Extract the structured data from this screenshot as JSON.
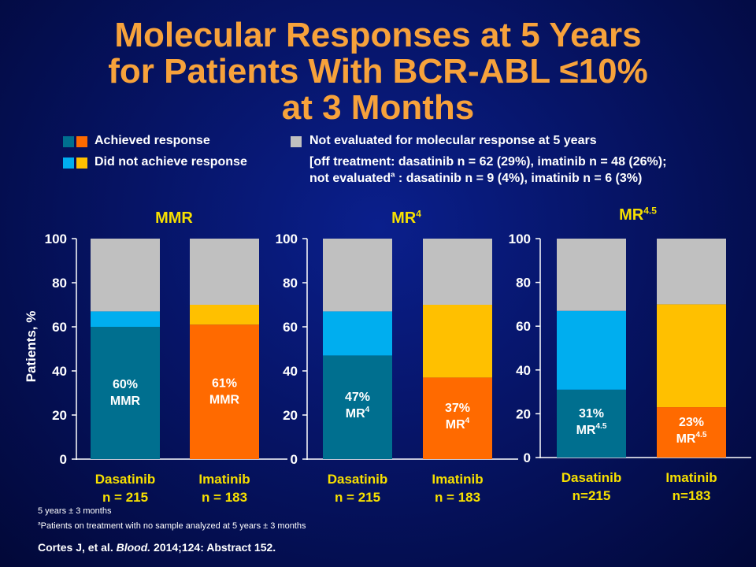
{
  "title": {
    "line1": "Molecular Responses at 5 Years",
    "line2": "for Patients With BCR-ABL ≤10%",
    "line3": "at 3 Months"
  },
  "legend": {
    "achieved": "Achieved response",
    "not_achieved": "Did not achieve response",
    "not_evaluated": "Not evaluated for molecular response at 5 years",
    "not_evaluated_detail1": "[off treatment: dasatinib n = 62 (29%), imatinib n = 48 (26%);",
    "not_evaluated_detail2a": "not evaluated",
    "not_evaluated_detail2sup": "a",
    "not_evaluated_detail2b": " : dasatinib n = 9 (4%), imatinib n = 6 (3%)",
    "colors": {
      "dasatinib_achieved": "#006f8f",
      "imatinib_achieved": "#ff6a00",
      "dasatinib_not": "#00aeef",
      "imatinib_not": "#ffc000",
      "not_evaluated": "#c0c0c0"
    }
  },
  "y_axis_label": "Patients, %",
  "chart_data": [
    {
      "type": "bar",
      "stacked": true,
      "panel_title": "MMR",
      "panel_title_sup": "",
      "ylim": [
        0,
        100
      ],
      "yticks": [
        0,
        20,
        40,
        60,
        80,
        100
      ],
      "categories": [
        {
          "name": "Dasatinib",
          "n": "n = 215"
        },
        {
          "name": "Imatinib",
          "n": "n = 183"
        }
      ],
      "series": [
        {
          "name": "Achieved response",
          "values": [
            60,
            61
          ]
        },
        {
          "name": "Did not achieve response",
          "values": [
            7,
            9
          ]
        },
        {
          "name": "Not evaluated for molecular response at 5 years",
          "values": [
            33,
            30
          ]
        }
      ],
      "data_labels": [
        {
          "pct": "60%",
          "label": "MMR",
          "sup": ""
        },
        {
          "pct": "61%",
          "label": "MMR",
          "sup": ""
        }
      ]
    },
    {
      "type": "bar",
      "stacked": true,
      "panel_title": "MR",
      "panel_title_sup": "4",
      "ylim": [
        0,
        100
      ],
      "yticks": [
        0,
        20,
        40,
        60,
        80,
        100
      ],
      "categories": [
        {
          "name": "Dasatinib",
          "n": "n = 215"
        },
        {
          "name": "Imatinib",
          "n": "n = 183"
        }
      ],
      "series": [
        {
          "name": "Achieved response",
          "values": [
            47,
            37
          ]
        },
        {
          "name": "Did not achieve response",
          "values": [
            20,
            33
          ]
        },
        {
          "name": "Not evaluated for molecular response at 5 years",
          "values": [
            33,
            30
          ]
        }
      ],
      "data_labels": [
        {
          "pct": "47%",
          "label": "MR",
          "sup": "4"
        },
        {
          "pct": "37%",
          "label": "MR",
          "sup": "4"
        }
      ]
    },
    {
      "type": "bar",
      "stacked": true,
      "panel_title": "MR",
      "panel_title_sup": "4.5",
      "ylim": [
        0,
        100
      ],
      "yticks": [
        0,
        20,
        40,
        60,
        80,
        100
      ],
      "categories": [
        {
          "name": "Dasatinib",
          "n": "n=215"
        },
        {
          "name": "Imatinib",
          "n": "n=183"
        }
      ],
      "series": [
        {
          "name": "Achieved response",
          "values": [
            31,
            23
          ]
        },
        {
          "name": "Did not achieve response",
          "values": [
            36,
            47
          ]
        },
        {
          "name": "Not evaluated for molecular response at 5 years",
          "values": [
            33,
            30
          ]
        }
      ],
      "data_labels": [
        {
          "pct": "31%",
          "label": "MR",
          "sup": "4.5"
        },
        {
          "pct": "23%",
          "label": "MR",
          "sup": "4.5"
        }
      ]
    }
  ],
  "footnotes": {
    "line1": "5 years ± 3 months",
    "line2_sup": "a",
    "line2": "Patients on treatment with no sample analyzed at 5 years ± 3 months"
  },
  "citation": {
    "authors": "Cortes J, et al. ",
    "journal": "Blood.",
    "rest": " 2014;124: Abstract 152."
  }
}
